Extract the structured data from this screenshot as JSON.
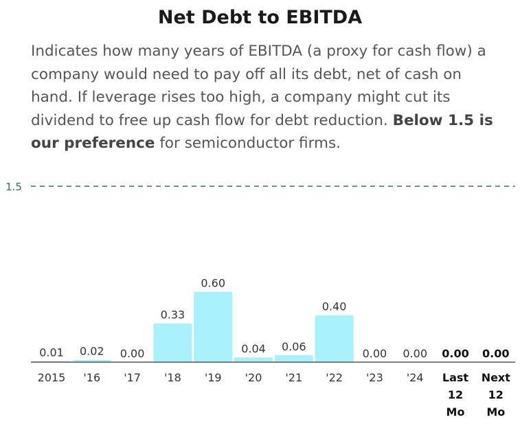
{
  "title": "Net Debt to EBITDA",
  "description": {
    "text_before": "Indicates how many years of EBITDA (a proxy for cash flow) a company would need to pay off all its debt, net of cash on hand. If leverage rises too high, a company might cut its dividend to free up cash flow for debt reduction. ",
    "bold_text": "Below 1.5 is our preference",
    "text_after": " for semiconductor firms."
  },
  "colors": {
    "bar": "#a8f0fc",
    "reference_line": "#2f6e82",
    "axis": "#555555",
    "label": "#333333"
  },
  "chart_data": {
    "type": "bar",
    "title": "Net Debt to EBITDA",
    "categories": [
      "2015",
      "'16",
      "'17",
      "'18",
      "'19",
      "'20",
      "'21",
      "'22",
      "'23",
      "'24",
      [
        "Last",
        "12",
        "Mo"
      ],
      [
        "Next",
        "12",
        "Mo"
      ]
    ],
    "values": [
      0.01,
      0.02,
      0.0,
      0.33,
      0.6,
      0.04,
      0.06,
      0.4,
      0.0,
      0.0,
      0.0,
      0.0
    ],
    "value_labels": [
      "0.01",
      "0.02",
      "0.00",
      "0.33",
      "0.60",
      "0.04",
      "0.06",
      "0.40",
      "0.00",
      "0.00",
      "0.00",
      "0.00"
    ],
    "bold_from_index": 10,
    "reference_line": {
      "value": 1.5,
      "label": "1.5"
    },
    "ylim": [
      0,
      1.5
    ],
    "xlabel": "",
    "ylabel": ""
  }
}
